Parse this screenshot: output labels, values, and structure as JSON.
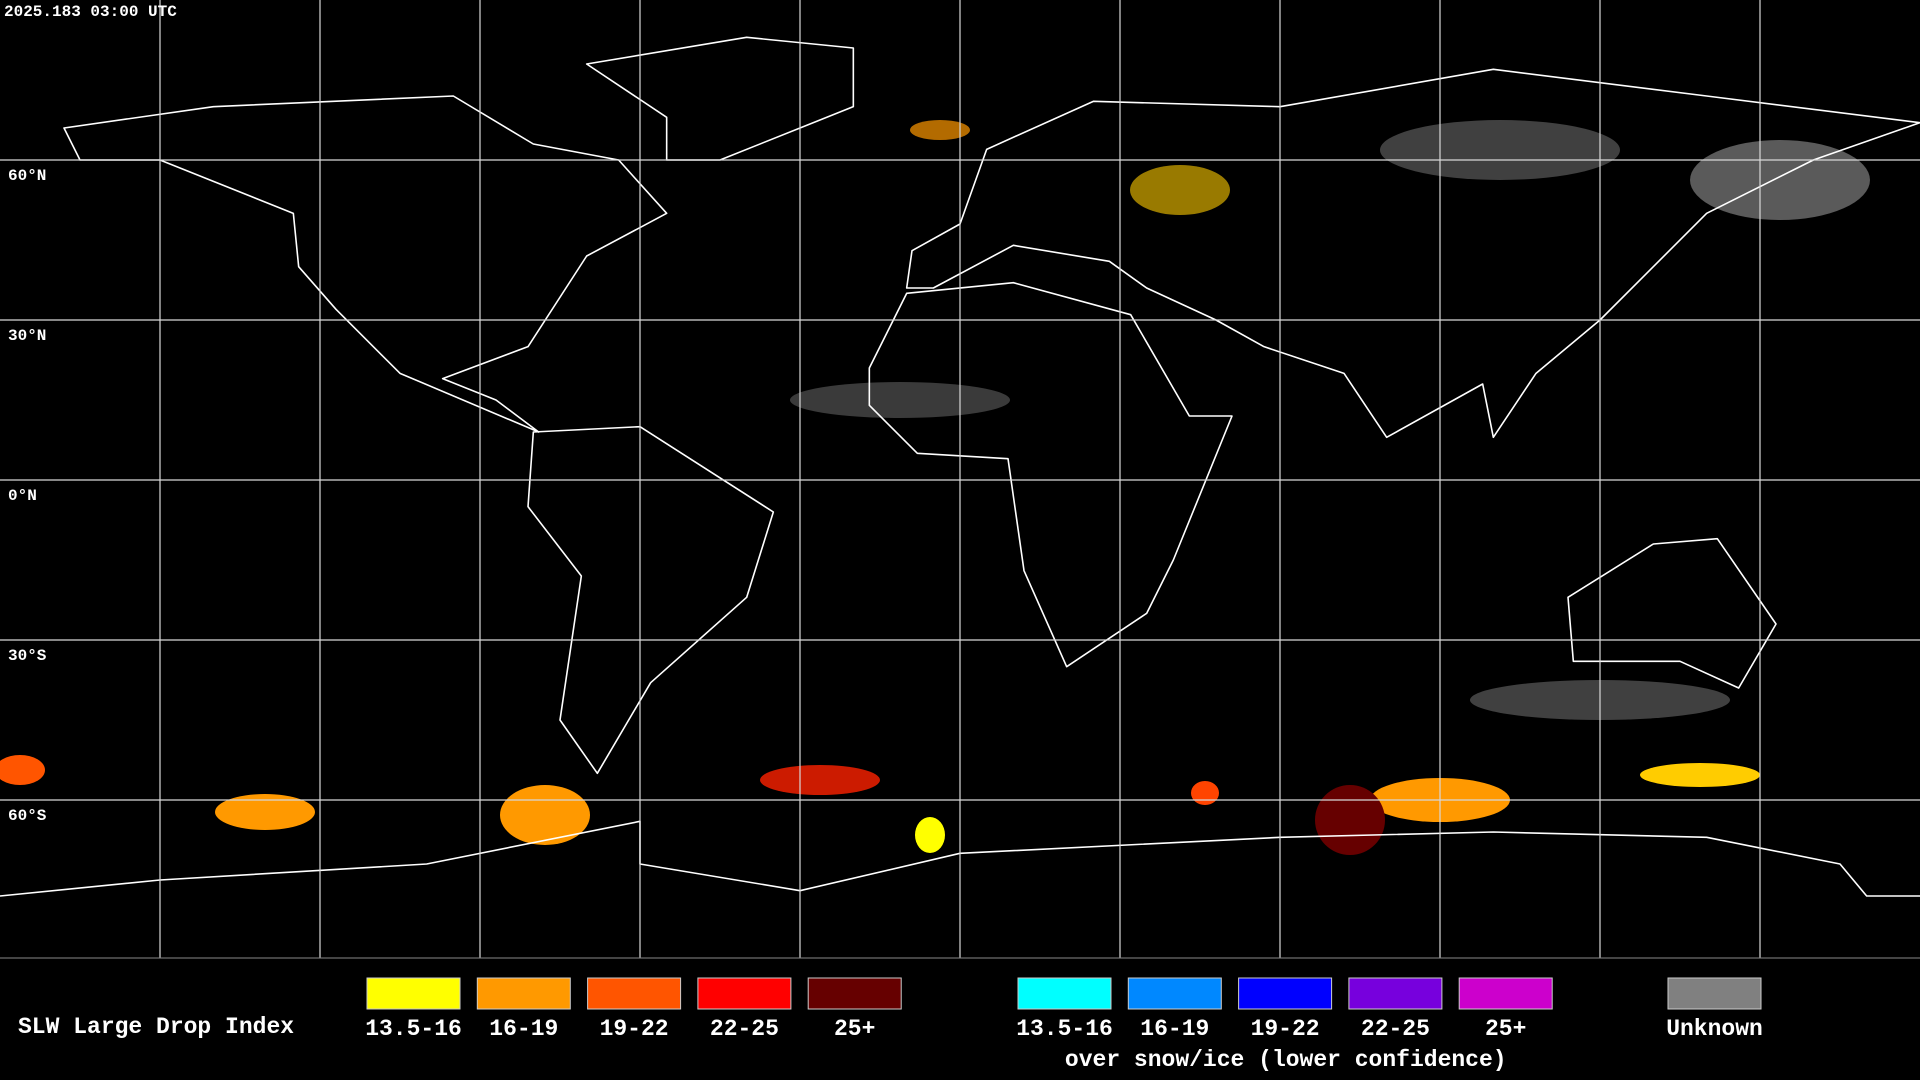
{
  "timestamp": "2025.183 03:00 UTC",
  "lat_labels": [
    "60°N",
    "30°N",
    "0°N",
    "30°S",
    "60°S"
  ],
  "legend": {
    "title": "SLW Large Drop Index",
    "groups": [
      {
        "items": [
          {
            "label": "13.5-16",
            "color": "#ffff00"
          },
          {
            "label": "16-19",
            "color": "#ff9900"
          },
          {
            "label": "19-22",
            "color": "#ff5500"
          },
          {
            "label": "22-25",
            "color": "#ff0000"
          },
          {
            "label": "25+",
            "color": "#660000"
          }
        ]
      },
      {
        "items": [
          {
            "label": "13.5-16",
            "color": "#00ffff"
          },
          {
            "label": "16-19",
            "color": "#0088ff"
          },
          {
            "label": "19-22",
            "color": "#0000ff"
          },
          {
            "label": "22-25",
            "color": "#7700dd"
          },
          {
            "label": "25+",
            "color": "#cc00cc"
          }
        ],
        "caption": "over snow/ice (lower confidence)"
      },
      {
        "items": [
          {
            "label": "Unknown",
            "color": "#808080"
          }
        ]
      }
    ]
  }
}
